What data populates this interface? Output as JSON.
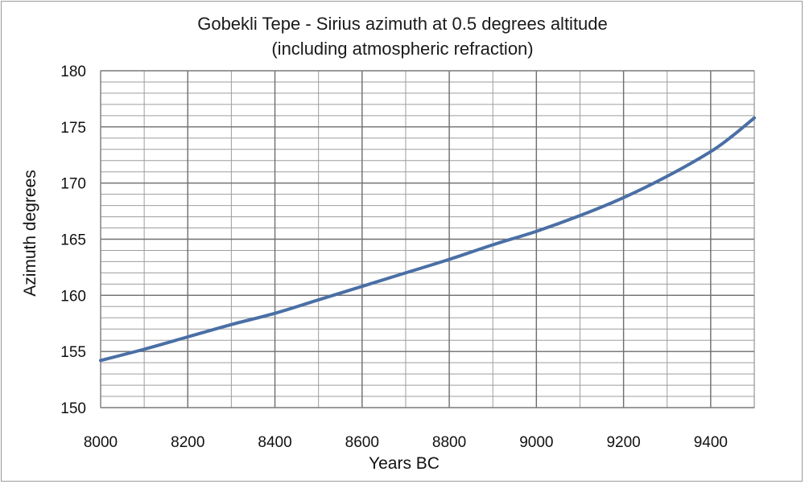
{
  "chart_data": {
    "type": "line",
    "title": "Gobekli Tepe - Sirius azimuth at 0.5 degrees altitude",
    "subtitle": "(including atmospheric refraction)",
    "xlabel": "Years BC",
    "ylabel": "Azimuth degrees",
    "xlim": [
      8000,
      9500
    ],
    "ylim": [
      150,
      180
    ],
    "x_ticks": [
      8000,
      8200,
      8400,
      8600,
      8800,
      9000,
      9200,
      9400
    ],
    "y_ticks": [
      150,
      155,
      160,
      165,
      170,
      175,
      180
    ],
    "x_minor_step": 100,
    "y_minor_step": 1,
    "grid": true,
    "legend": "none",
    "series": [
      {
        "color": "#4a6fa5",
        "x": [
          8000,
          8100,
          8200,
          8300,
          8400,
          8500,
          8600,
          8700,
          8800,
          8900,
          9000,
          9100,
          9200,
          9300,
          9400,
          9450,
          9500
        ],
        "values": [
          154.2,
          155.2,
          156.3,
          157.4,
          158.4,
          159.6,
          160.8,
          162.0,
          163.2,
          164.5,
          165.7,
          167.1,
          168.7,
          170.6,
          172.8,
          174.2,
          175.8
        ]
      }
    ]
  }
}
